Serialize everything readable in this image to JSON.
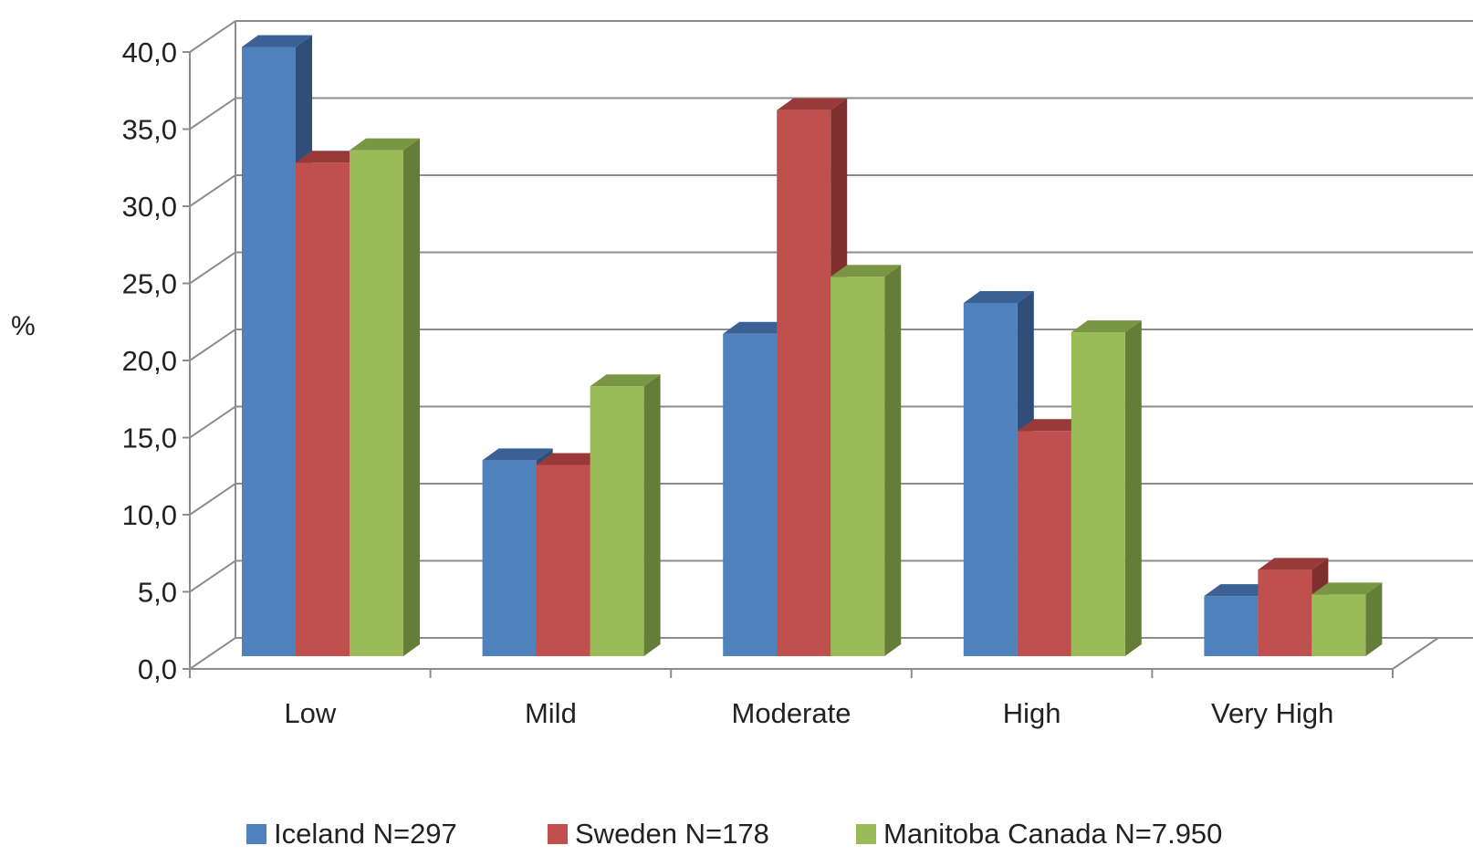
{
  "chart_data": {
    "type": "bar",
    "title": "",
    "xlabel": "",
    "ylabel": "%",
    "ylim": [
      0,
      40
    ],
    "y_ticks": [
      "0,0",
      "5,0",
      "10,0",
      "15,0",
      "20,0",
      "25,0",
      "30,0",
      "35,0",
      "40,0"
    ],
    "categories": [
      "Low",
      "Mild",
      "Moderate",
      "High",
      "Very High"
    ],
    "series": [
      {
        "name": "Iceland N=297",
        "color": "#4F81BD",
        "top_color": "#3A6094",
        "side_color": "#2F4F7A",
        "values": [
          39.5,
          12.7,
          20.9,
          22.9,
          3.9
        ]
      },
      {
        "name": "Sweden N=178",
        "color": "#C0504D",
        "top_color": "#9A3A38",
        "side_color": "#7F2F2D",
        "values": [
          32.0,
          12.4,
          35.4,
          14.6,
          5.6
        ]
      },
      {
        "name": "Manitoba Canada N=7.950",
        "color": "#9BBB59",
        "top_color": "#799644",
        "side_color": "#647D38",
        "values": [
          32.8,
          17.5,
          24.6,
          21.0,
          4.0
        ]
      }
    ],
    "grid": true,
    "legend_position": "bottom"
  }
}
